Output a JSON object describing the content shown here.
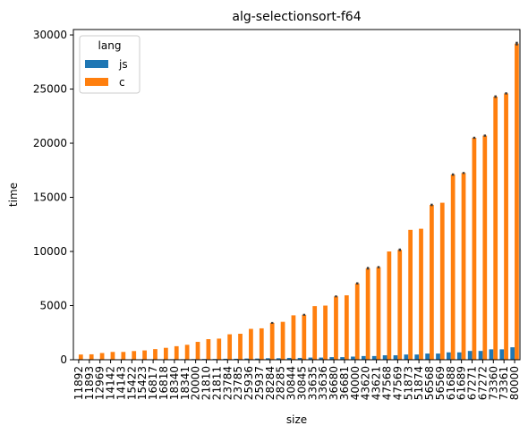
{
  "chart_data": {
    "type": "bar",
    "title": "alg-selectionsort-f64",
    "xlabel": "size",
    "ylabel": "time",
    "ylim": [
      0,
      30500
    ],
    "yticks": [
      0,
      5000,
      10000,
      15000,
      20000,
      25000,
      30000
    ],
    "grid": false,
    "legend": {
      "title": "lang",
      "position": "top-left"
    },
    "categories": [
      "11892",
      "11893",
      "12969",
      "14142",
      "14143",
      "15422",
      "15423",
      "16817",
      "16818",
      "18340",
      "18341",
      "20000",
      "21810",
      "21811",
      "23784",
      "23785",
      "25936",
      "25937",
      "28284",
      "28285",
      "30844",
      "30845",
      "33635",
      "33636",
      "36680",
      "36681",
      "40000",
      "43620",
      "43621",
      "47568",
      "47569",
      "51873",
      "51874",
      "56568",
      "56569",
      "61688",
      "61689",
      "67271",
      "67272",
      "73360",
      "73361",
      "80000"
    ],
    "series": [
      {
        "name": "js",
        "color": "#1f77b4",
        "values": [
          15,
          15,
          20,
          25,
          25,
          30,
          30,
          40,
          40,
          50,
          50,
          60,
          70,
          70,
          90,
          90,
          110,
          110,
          140,
          140,
          170,
          170,
          200,
          200,
          240,
          240,
          290,
          340,
          340,
          410,
          410,
          480,
          480,
          570,
          570,
          680,
          680,
          810,
          810,
          960,
          960,
          1150
        ],
        "errors": [
          0,
          0,
          0,
          0,
          0,
          0,
          0,
          0,
          0,
          0,
          0,
          0,
          0,
          0,
          0,
          0,
          0,
          0,
          0,
          0,
          0,
          0,
          0,
          0,
          0,
          0,
          0,
          0,
          0,
          0,
          0,
          0,
          0,
          0,
          0,
          0,
          0,
          0,
          0,
          0,
          0,
          0
        ]
      },
      {
        "name": "c",
        "color": "#ff7f0e",
        "values": [
          480,
          500,
          620,
          720,
          720,
          800,
          860,
          980,
          1100,
          1250,
          1380,
          1650,
          1900,
          1950,
          2350,
          2400,
          2850,
          2900,
          3400,
          3500,
          4100,
          4150,
          4950,
          5000,
          5850,
          5950,
          7050,
          8450,
          8550,
          10000,
          10150,
          12000,
          12100,
          14300,
          14500,
          17100,
          17250,
          20500,
          20700,
          24300,
          24600,
          29200
        ],
        "errors": [
          0,
          0,
          0,
          0,
          0,
          0,
          0,
          0,
          0,
          0,
          0,
          0,
          0,
          0,
          0,
          0,
          0,
          0,
          80,
          0,
          0,
          90,
          0,
          0,
          90,
          0,
          100,
          120,
          100,
          0,
          120,
          0,
          0,
          110,
          0,
          110,
          90,
          100,
          100,
          120,
          100,
          170
        ]
      }
    ]
  }
}
